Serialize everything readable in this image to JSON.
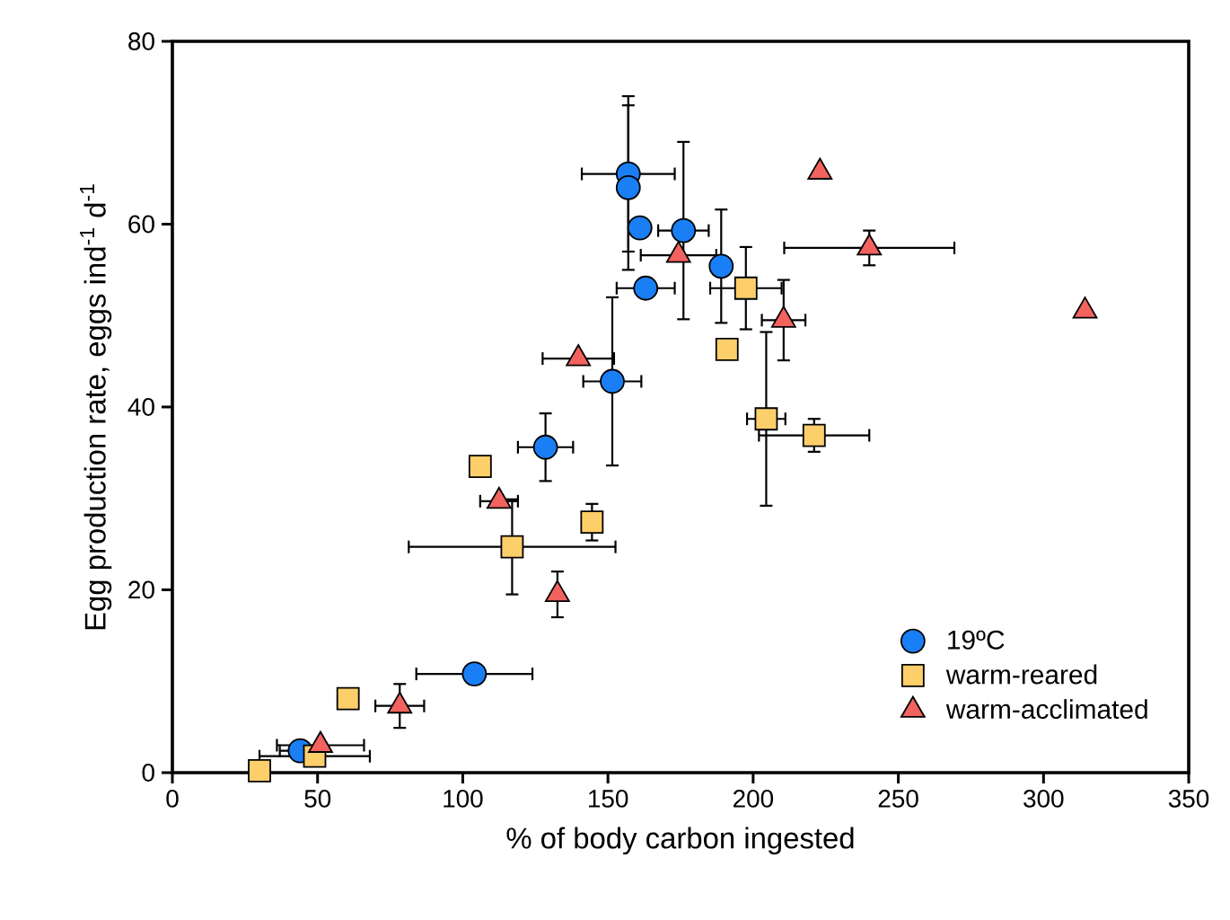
{
  "chart_data": {
    "type": "scatter",
    "xlabel": "% of body carbon ingested",
    "ylabel": "Egg production rate, eggs ind$^{-1}$ d$^{-1}$",
    "xlim": [
      0,
      350
    ],
    "xticks": [
      0,
      50,
      100,
      150,
      200,
      250,
      300,
      350
    ],
    "ylim": [
      0,
      80
    ],
    "yticks": [
      0,
      20,
      40,
      60,
      80
    ],
    "grid": false,
    "legend": "bottom right",
    "series": [
      {
        "name": "19ºC",
        "color": "#1a7ef5",
        "marker": "circle",
        "x": [
          157,
          157,
          161,
          176,
          163,
          151.5,
          128.5,
          104,
          44,
          189
        ],
        "values": [
          65.5,
          64,
          59.6,
          59.3,
          53,
          42.8,
          35.6,
          10.8,
          2.4,
          55.4
        ],
        "errors": [
          8.5,
          9,
          null,
          9.7,
          1,
          9.2,
          3.7,
          null,
          null,
          6.2
        ],
        "xerrors": [
          16,
          null,
          null,
          8.7,
          10,
          10,
          9.5,
          20,
          7,
          null
        ]
      },
      {
        "name": "warm-reared",
        "color": "#fdcf6a",
        "marker": "square",
        "x": [
          30,
          49,
          60.5,
          106,
          117,
          144.5,
          197.5,
          191,
          204.5,
          221
        ],
        "values": [
          0.2,
          1.8,
          8.1,
          33.5,
          24.7,
          27.4,
          53,
          46.3,
          38.7,
          36.9
        ],
        "errors": [
          null,
          null,
          null,
          null,
          5.2,
          2,
          4.5,
          null,
          9.5,
          1.8
        ],
        "xerrors": [
          null,
          19,
          null,
          null,
          35.6,
          null,
          12.3,
          null,
          6.6,
          19
        ]
      },
      {
        "name": "warm-acclimated",
        "color": "#f2625f",
        "marker": "triangle",
        "x": [
          51,
          78.3,
          112.5,
          132.6,
          139.8,
          174.3,
          223,
          240,
          210.5,
          314.3
        ],
        "values": [
          3,
          7.3,
          29.7,
          19.5,
          45.3,
          56.6,
          65.7,
          57.4,
          49.5,
          50.5
        ],
        "errors": [
          null,
          2.4,
          null,
          2.5,
          null,
          null,
          null,
          1.9,
          4.4,
          null
        ],
        "xerrors": [
          15,
          8.4,
          6.5,
          null,
          12.3,
          13,
          null,
          29.3,
          7.5,
          null
        ]
      }
    ]
  }
}
